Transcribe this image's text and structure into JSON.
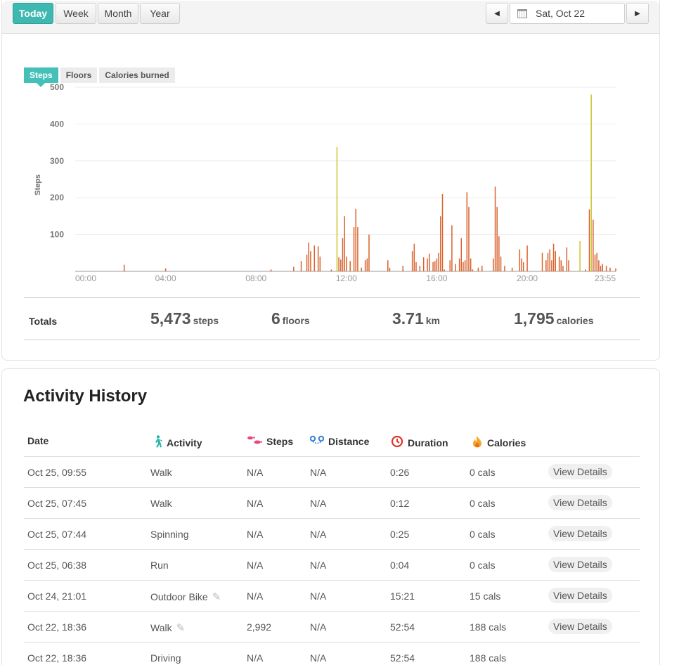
{
  "toolbar": {
    "range_buttons": [
      "Today",
      "Week",
      "Month",
      "Year"
    ],
    "date_label": "Sat, Oct 22",
    "prev_icon": "◀",
    "next_icon": "▶"
  },
  "metric_tabs": [
    "Steps",
    "Floors",
    "Calories burned"
  ],
  "colors": {
    "accent": "#3fb8b1",
    "bar": "#d9622c",
    "bar_highlight": "#c8c62a"
  },
  "chart_data": {
    "type": "bar",
    "ylabel": "Steps",
    "ylim": [
      0,
      500
    ],
    "y_ticks": [
      "500",
      "400",
      "300",
      "200",
      "100"
    ],
    "x_tick_labels": [
      "00:00",
      "04:00",
      "08:00",
      "12:00",
      "16:00",
      "20:00",
      "23:55"
    ],
    "x_unit": "minutes since 00:00 (5-minute intervals)",
    "series": [
      {
        "name": "Steps",
        "points": [
          [
            130,
            18
          ],
          [
            240,
            8
          ],
          [
            520,
            5
          ],
          [
            580,
            12
          ],
          [
            600,
            28
          ],
          [
            615,
            45
          ],
          [
            620,
            78
          ],
          [
            625,
            55
          ],
          [
            635,
            70
          ],
          [
            645,
            68
          ],
          [
            650,
            40
          ],
          [
            680,
            5
          ],
          [
            695,
            338
          ],
          [
            700,
            38
          ],
          [
            705,
            32
          ],
          [
            710,
            90
          ],
          [
            715,
            150
          ],
          [
            720,
            40
          ],
          [
            730,
            28
          ],
          [
            740,
            120
          ],
          [
            745,
            170
          ],
          [
            750,
            120
          ],
          [
            760,
            10
          ],
          [
            770,
            30
          ],
          [
            775,
            35
          ],
          [
            780,
            100
          ],
          [
            830,
            30
          ],
          [
            835,
            10
          ],
          [
            870,
            15
          ],
          [
            895,
            55
          ],
          [
            900,
            75
          ],
          [
            905,
            25
          ],
          [
            915,
            15
          ],
          [
            925,
            38
          ],
          [
            935,
            35
          ],
          [
            940,
            48
          ],
          [
            950,
            25
          ],
          [
            955,
            28
          ],
          [
            960,
            35
          ],
          [
            965,
            50
          ],
          [
            970,
            150
          ],
          [
            975,
            210
          ],
          [
            980,
            5
          ],
          [
            995,
            30
          ],
          [
            1000,
            125
          ],
          [
            1010,
            20
          ],
          [
            1020,
            35
          ],
          [
            1025,
            90
          ],
          [
            1030,
            25
          ],
          [
            1035,
            30
          ],
          [
            1040,
            215
          ],
          [
            1045,
            175
          ],
          [
            1050,
            35
          ],
          [
            1055,
            5
          ],
          [
            1070,
            10
          ],
          [
            1080,
            15
          ],
          [
            1110,
            35
          ],
          [
            1115,
            230
          ],
          [
            1120,
            175
          ],
          [
            1125,
            95
          ],
          [
            1130,
            40
          ],
          [
            1140,
            15
          ],
          [
            1160,
            10
          ],
          [
            1180,
            60
          ],
          [
            1185,
            35
          ],
          [
            1190,
            25
          ],
          [
            1200,
            70
          ],
          [
            1240,
            50
          ],
          [
            1250,
            30
          ],
          [
            1255,
            50
          ],
          [
            1260,
            60
          ],
          [
            1265,
            30
          ],
          [
            1270,
            75
          ],
          [
            1275,
            55
          ],
          [
            1285,
            40
          ],
          [
            1290,
            30
          ],
          [
            1295,
            15
          ],
          [
            1305,
            65
          ],
          [
            1310,
            30
          ],
          [
            1340,
            82
          ],
          [
            1355,
            5
          ],
          [
            1365,
            168
          ],
          [
            1370,
            480
          ],
          [
            1375,
            140
          ],
          [
            1380,
            45
          ],
          [
            1385,
            50
          ],
          [
            1390,
            30
          ],
          [
            1395,
            15
          ],
          [
            1400,
            20
          ],
          [
            1410,
            15
          ],
          [
            1420,
            10
          ],
          [
            1435,
            8
          ]
        ]
      }
    ],
    "highlighted_x": [
      695,
      1340,
      1370
    ]
  },
  "totals": {
    "label": "Totals",
    "items": [
      {
        "value": "5,473",
        "unit": "steps"
      },
      {
        "value": "6",
        "unit": "floors"
      },
      {
        "value": "3.71",
        "unit": "km"
      },
      {
        "value": "1,795",
        "unit": "calories"
      }
    ]
  },
  "history": {
    "title": "Activity History",
    "columns": [
      {
        "label": "Date",
        "icon": ""
      },
      {
        "label": "Activity",
        "icon": "walker-icon"
      },
      {
        "label": "Steps",
        "icon": "footprints-icon"
      },
      {
        "label": "Distance",
        "icon": "route-icon"
      },
      {
        "label": "Duration",
        "icon": "stopwatch-icon"
      },
      {
        "label": "Calories",
        "icon": "flame-icon"
      }
    ],
    "view_label": "View Details",
    "rows": [
      {
        "date": "Oct 25, 09:55",
        "activity": "Walk",
        "edit": false,
        "steps": "N/A",
        "distance": "N/A",
        "duration": "0:26",
        "calories": "0 cals",
        "view": true
      },
      {
        "date": "Oct 25, 07:45",
        "activity": "Walk",
        "edit": false,
        "steps": "N/A",
        "distance": "N/A",
        "duration": "0:12",
        "calories": "0 cals",
        "view": true
      },
      {
        "date": "Oct 25, 07:44",
        "activity": "Spinning",
        "edit": false,
        "steps": "N/A",
        "distance": "N/A",
        "duration": "0:25",
        "calories": "0 cals",
        "view": true
      },
      {
        "date": "Oct 25, 06:38",
        "activity": "Run",
        "edit": false,
        "steps": "N/A",
        "distance": "N/A",
        "duration": "0:04",
        "calories": "0 cals",
        "view": true
      },
      {
        "date": "Oct 24, 21:01",
        "activity": "Outdoor Bike",
        "edit": true,
        "steps": "N/A",
        "distance": "N/A",
        "duration": "15:21",
        "calories": "15 cals",
        "view": true
      },
      {
        "date": "Oct 22, 18:36",
        "activity": "Walk",
        "edit": true,
        "steps": "2,992",
        "distance": "N/A",
        "duration": "52:54",
        "calories": "188 cals",
        "view": true
      },
      {
        "date": "Oct 22, 18:36",
        "activity": "Driving",
        "edit": false,
        "steps": "N/A",
        "distance": "N/A",
        "duration": "52:54",
        "calories": "188 cals",
        "view": false
      }
    ]
  }
}
